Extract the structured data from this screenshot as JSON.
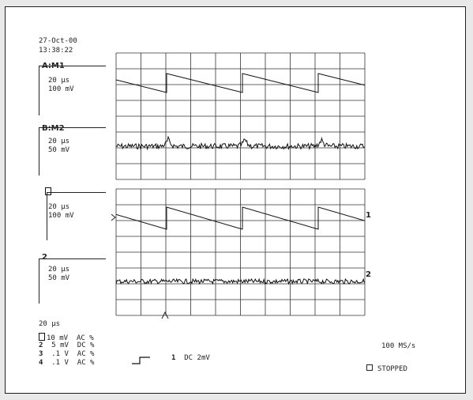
{
  "header": {
    "date": "27-Oct-00",
    "time": "13:38:22"
  },
  "traces": [
    {
      "label": "A:M1",
      "timebase": "20 µs",
      "scale": "100 mV"
    },
    {
      "label": "B:M2",
      "timebase": "20 µs",
      "scale": "50 mV"
    },
    {
      "label": "1",
      "timebase": "20 µs",
      "scale": "100 mV"
    },
    {
      "label": "2",
      "timebase": "20 µs",
      "scale": "50 mV"
    }
  ],
  "channel_markers": [
    "1",
    "2"
  ],
  "timebase_readout": "20 µs",
  "channels": [
    {
      "num": "1",
      "volts": "10 mV",
      "coupling": "AC %"
    },
    {
      "num": "2",
      "volts": "5 mV",
      "coupling": "DC %"
    },
    {
      "num": "3",
      "volts": ".1 V",
      "coupling": "AC %"
    },
    {
      "num": "4",
      "volts": ".1 V",
      "coupling": "AC %"
    }
  ],
  "trigger": {
    "channel": "1",
    "setting": "DC 2mV"
  },
  "sample_rate": "100 MS/s",
  "acq_state": "STOPPED"
}
